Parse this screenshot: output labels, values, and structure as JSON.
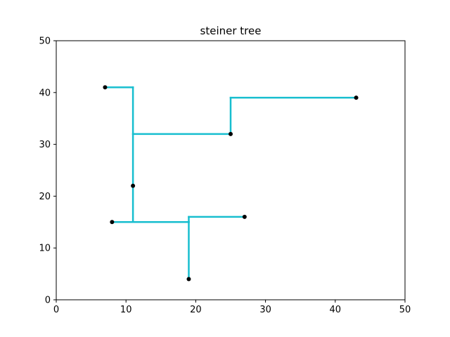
{
  "chart_data": {
    "type": "scatter",
    "title": "steiner tree",
    "xlabel": "",
    "ylabel": "",
    "xlim": [
      0,
      50
    ],
    "ylim": [
      0,
      50
    ],
    "xticks": [
      0,
      10,
      20,
      30,
      40,
      50
    ],
    "yticks": [
      0,
      10,
      20,
      30,
      40,
      50
    ],
    "grid": false,
    "colors": {
      "edge": "#17becf",
      "point": "#000000",
      "axes": "#000000",
      "background": "#ffffff"
    },
    "points": [
      {
        "x": 7,
        "y": 41
      },
      {
        "x": 43,
        "y": 39
      },
      {
        "x": 25,
        "y": 32
      },
      {
        "x": 11,
        "y": 22
      },
      {
        "x": 27,
        "y": 16
      },
      {
        "x": 8,
        "y": 15
      },
      {
        "x": 19,
        "y": 4
      }
    ],
    "edges": [
      [
        [
          7,
          41
        ],
        [
          11,
          41
        ]
      ],
      [
        [
          11,
          41
        ],
        [
          11,
          32
        ]
      ],
      [
        [
          11,
          32
        ],
        [
          25,
          32
        ]
      ],
      [
        [
          25,
          32
        ],
        [
          25,
          39
        ]
      ],
      [
        [
          25,
          39
        ],
        [
          43,
          39
        ]
      ],
      [
        [
          11,
          32
        ],
        [
          11,
          15
        ]
      ],
      [
        [
          8,
          15
        ],
        [
          19,
          15
        ]
      ],
      [
        [
          19,
          15
        ],
        [
          19,
          4
        ]
      ],
      [
        [
          19,
          15
        ],
        [
          19,
          16
        ]
      ],
      [
        [
          19,
          16
        ],
        [
          27,
          16
        ]
      ]
    ]
  }
}
